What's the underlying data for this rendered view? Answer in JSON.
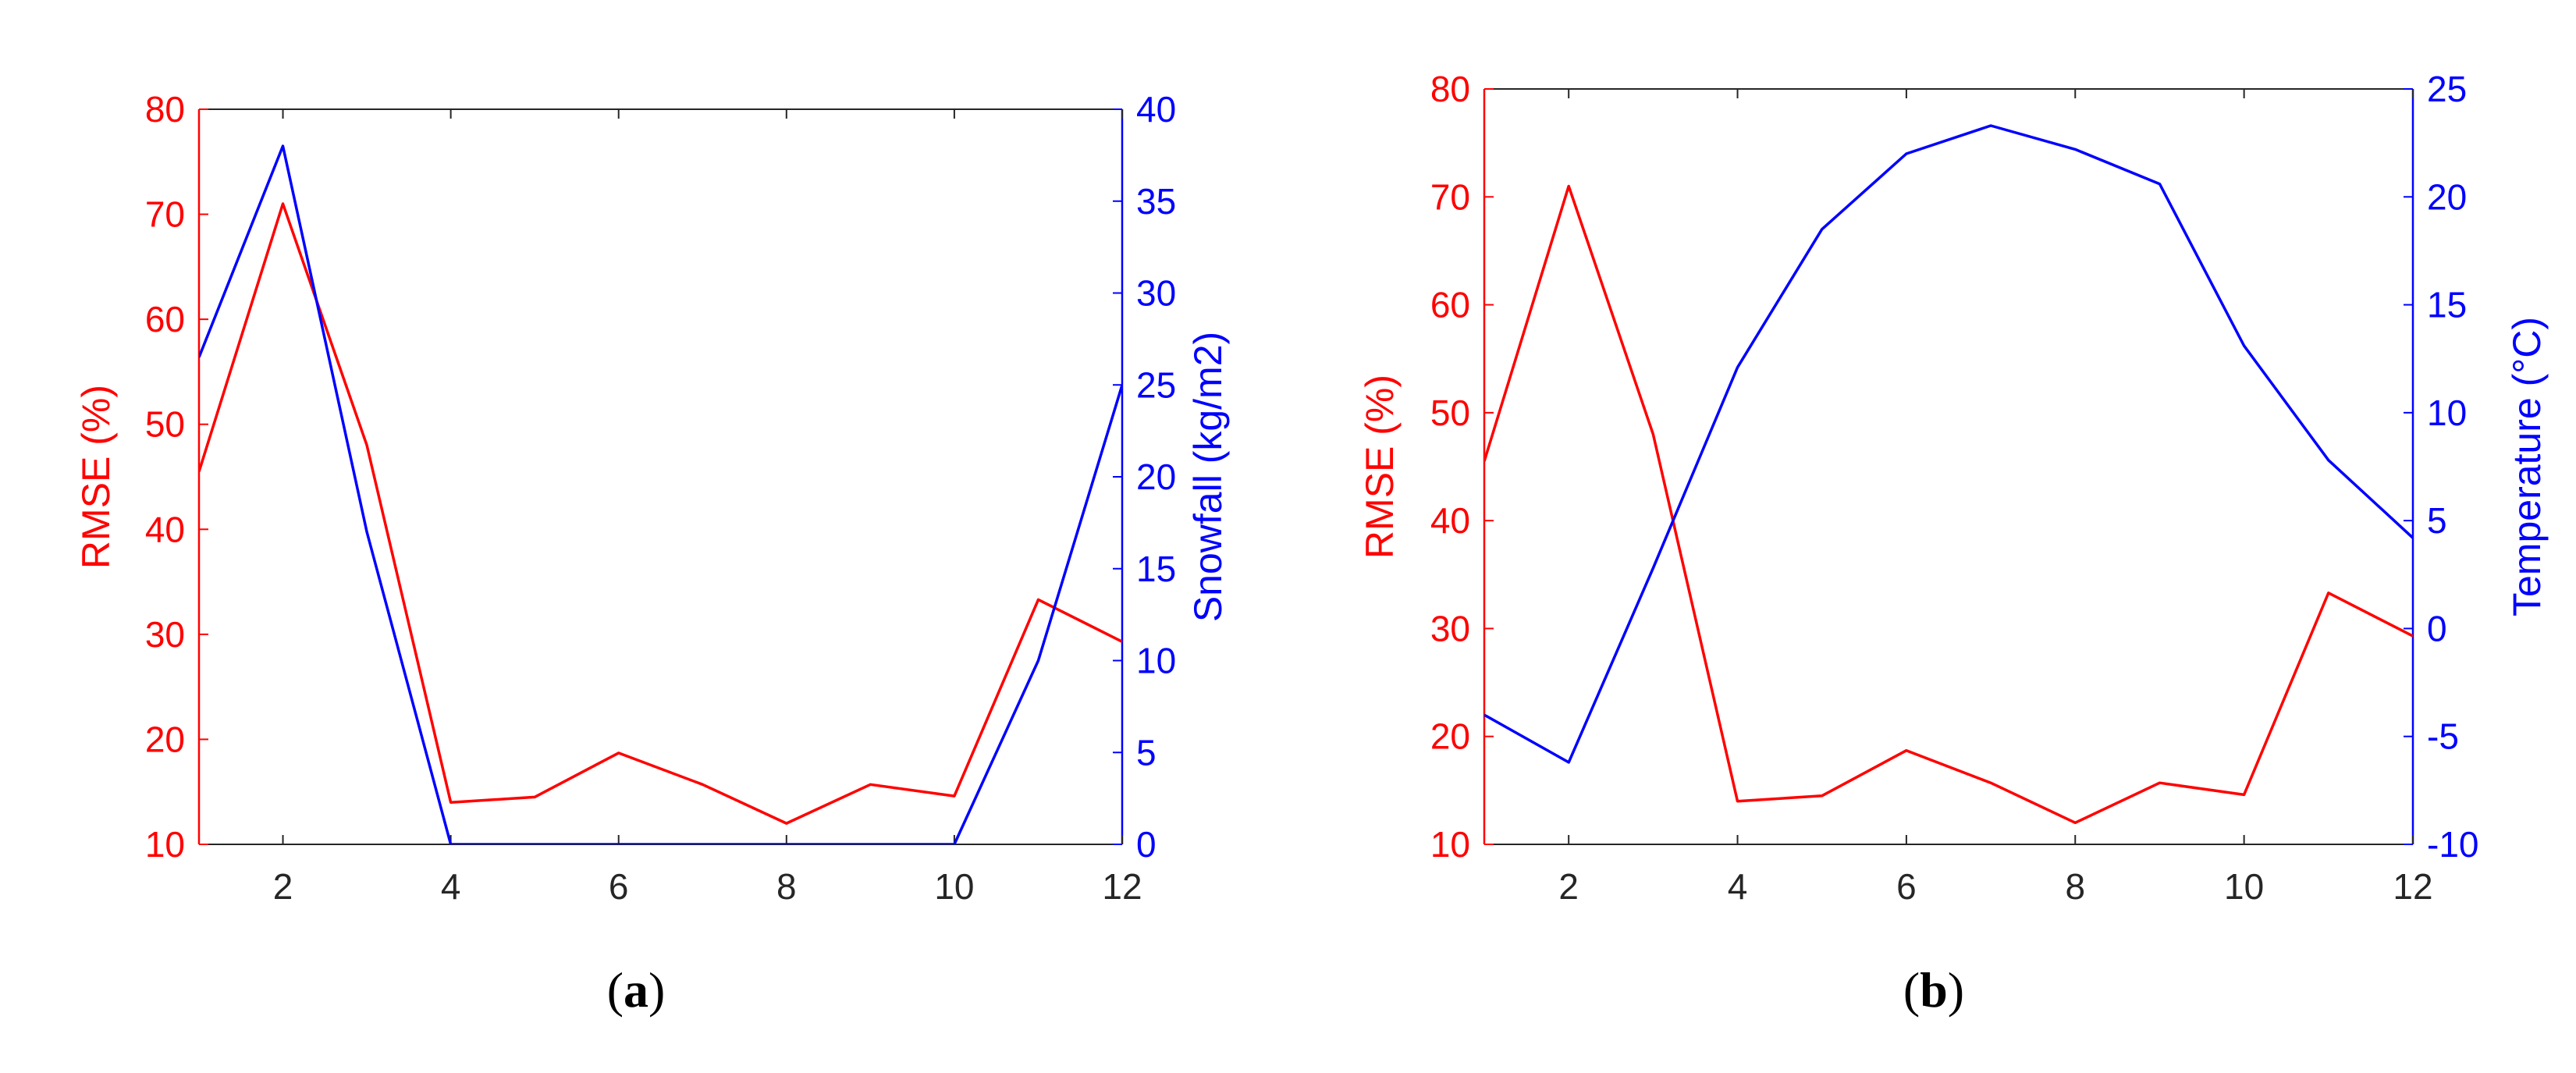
{
  "colors": {
    "left_axis": "#ff0000",
    "right_axis": "#0000ff",
    "x_axis": "#262626",
    "frame": "#262626"
  },
  "chart_data": [
    {
      "type": "line",
      "panel_label_open": "(",
      "panel_label_letter": "a",
      "panel_label_close": ")",
      "xlim": [
        1,
        12
      ],
      "xticks": [
        2,
        4,
        6,
        8,
        10,
        12
      ],
      "xlabel": "",
      "grid": false,
      "y_left": {
        "label": "RMSE (%)",
        "lim": [
          10,
          80
        ],
        "ticks": [
          10,
          20,
          30,
          40,
          50,
          60,
          70,
          80
        ],
        "color": "#ff0000"
      },
      "y_right": {
        "label": "Snowfall (kg/m2)",
        "lim": [
          0,
          40
        ],
        "ticks": [
          0,
          5,
          10,
          15,
          20,
          25,
          30,
          35,
          40
        ],
        "color": "#0000ff"
      },
      "series": [
        {
          "axis": "left",
          "color": "#ff0000",
          "x": [
            1,
            2,
            3,
            4,
            5,
            6,
            7,
            8,
            9,
            10,
            11,
            12
          ],
          "values": [
            45.5,
            71.0,
            48.0,
            14.0,
            14.5,
            18.7,
            15.7,
            12.0,
            15.7,
            14.6,
            33.3,
            29.3
          ]
        },
        {
          "axis": "right",
          "color": "#0000ff",
          "x": [
            1,
            2,
            3,
            4,
            5,
            6,
            7,
            8,
            9,
            10,
            11,
            12
          ],
          "values": [
            26.5,
            38.0,
            17.0,
            0,
            0,
            0,
            0,
            0,
            0,
            0,
            10.0,
            25.0
          ]
        }
      ]
    },
    {
      "type": "line",
      "panel_label_open": "(",
      "panel_label_letter": "b",
      "panel_label_close": ")",
      "xlim": [
        1,
        12
      ],
      "xticks": [
        2,
        4,
        6,
        8,
        10,
        12
      ],
      "xlabel": "",
      "grid": false,
      "y_left": {
        "label": "RMSE (%)",
        "lim": [
          10,
          80
        ],
        "ticks": [
          10,
          20,
          30,
          40,
          50,
          60,
          70,
          80
        ],
        "color": "#ff0000"
      },
      "y_right": {
        "label": "Temperature (°C)",
        "lim": [
          -10,
          25
        ],
        "ticks": [
          -10,
          -5,
          0,
          5,
          10,
          15,
          20,
          25
        ],
        "color": "#0000ff"
      },
      "series": [
        {
          "axis": "left",
          "color": "#ff0000",
          "x": [
            1,
            2,
            3,
            4,
            5,
            6,
            7,
            8,
            9,
            10,
            11,
            12
          ],
          "values": [
            45.5,
            71.0,
            48.0,
            14.0,
            14.5,
            18.7,
            15.7,
            12.0,
            15.7,
            14.6,
            33.3,
            29.3
          ]
        },
        {
          "axis": "right",
          "color": "#0000ff",
          "x": [
            1,
            2,
            3,
            4,
            5,
            6,
            7,
            8,
            9,
            10,
            11,
            12
          ],
          "values": [
            -4.0,
            -6.2,
            2.8,
            12.1,
            18.5,
            22.0,
            23.3,
            22.2,
            20.6,
            13.1,
            7.8,
            4.2
          ]
        }
      ]
    }
  ]
}
